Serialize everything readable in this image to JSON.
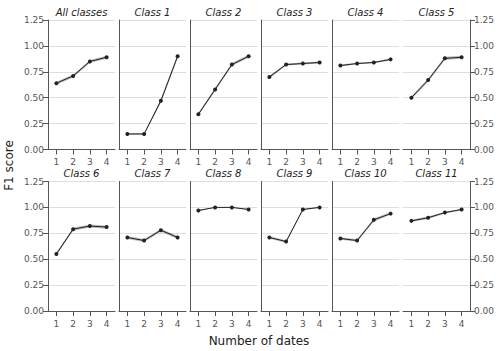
{
  "chart_data": {
    "type": "line",
    "xlabel": "Number of dates",
    "ylabel": "F1 score",
    "x": [
      1,
      2,
      3,
      4
    ],
    "xlim": [
      0.5,
      4.5
    ],
    "xticks": [
      1,
      2,
      3,
      4
    ],
    "ylim": [
      0.0,
      1.25
    ],
    "yticks": [
      {
        "value": 0.0,
        "label": "0.00"
      },
      {
        "value": 0.25,
        "label": "0.25"
      },
      {
        "value": 0.5,
        "label": "0.50"
      },
      {
        "value": 0.75,
        "label": "0.75"
      },
      {
        "value": 1.0,
        "label": "1.00"
      },
      {
        "value": 1.25,
        "label": "1.25"
      }
    ],
    "grid": true,
    "color": "#222222",
    "marker": "circle",
    "series": [
      {
        "name": "All classes",
        "values": [
          0.64,
          0.71,
          0.85,
          0.89
        ],
        "std": [
          0.015,
          0.015,
          0.015,
          0.015
        ]
      },
      {
        "name": "Class 1",
        "values": [
          0.15,
          0.15,
          0.47,
          0.9
        ],
        "std": [
          0.008,
          0.008,
          0.02,
          0.02
        ]
      },
      {
        "name": "Class 2",
        "values": [
          0.34,
          0.58,
          0.82,
          0.9
        ],
        "std": [
          0.015,
          0.015,
          0.015,
          0.015
        ]
      },
      {
        "name": "Class 3",
        "values": [
          0.7,
          0.82,
          0.83,
          0.84
        ],
        "std": [
          0.015,
          0.01,
          0.01,
          0.01
        ]
      },
      {
        "name": "Class 4",
        "values": [
          0.81,
          0.83,
          0.84,
          0.87
        ],
        "std": [
          0.01,
          0.008,
          0.008,
          0.01
        ]
      },
      {
        "name": "Class 5",
        "values": [
          0.5,
          0.67,
          0.88,
          0.89
        ],
        "std": [
          0.015,
          0.015,
          0.015,
          0.015
        ]
      },
      {
        "name": "Class 6",
        "values": [
          0.55,
          0.79,
          0.82,
          0.81
        ],
        "std": [
          0.015,
          0.015,
          0.015,
          0.015
        ]
      },
      {
        "name": "Class 7",
        "values": [
          0.71,
          0.68,
          0.78,
          0.71
        ],
        "std": [
          0.015,
          0.015,
          0.015,
          0.015
        ]
      },
      {
        "name": "Class 8",
        "values": [
          0.97,
          1.0,
          1.0,
          0.98
        ],
        "std": [
          0.008,
          0.002,
          0.002,
          0.008
        ]
      },
      {
        "name": "Class 9",
        "values": [
          0.71,
          0.67,
          0.98,
          1.0
        ],
        "std": [
          0.012,
          0.012,
          0.008,
          0.003
        ]
      },
      {
        "name": "Class 10",
        "values": [
          0.7,
          0.68,
          0.88,
          0.94
        ],
        "std": [
          0.012,
          0.012,
          0.015,
          0.012
        ]
      },
      {
        "name": "Class 11",
        "values": [
          0.87,
          0.9,
          0.95,
          0.98
        ],
        "std": [
          0.012,
          0.012,
          0.008,
          0.008
        ]
      }
    ]
  }
}
